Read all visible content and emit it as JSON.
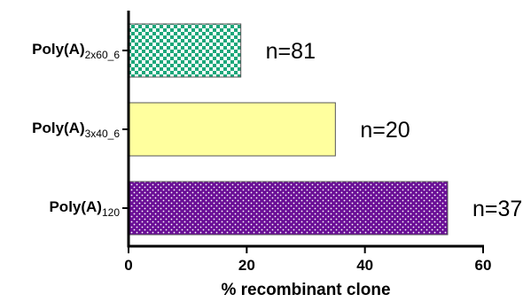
{
  "chart_data": {
    "type": "bar",
    "orientation": "horizontal",
    "categories": [
      {
        "main": "Poly(A)",
        "sub": "2x60_6"
      },
      {
        "main": "Poly(A)",
        "sub": "3x40_6"
      },
      {
        "main": "Poly(A)",
        "sub": "120"
      }
    ],
    "values": [
      19,
      35,
      54
    ],
    "data_labels": [
      "n=81",
      "n=20",
      "n=37"
    ],
    "fills": [
      {
        "pattern": "checker",
        "colors": [
          "#1aa77a",
          "#ffffff"
        ]
      },
      {
        "pattern": "solid",
        "colors": [
          "#ffff9e"
        ]
      },
      {
        "pattern": "dots",
        "colors": [
          "#6a0f96",
          "#ffffff"
        ]
      }
    ],
    "xlabel": "% recombinant clone",
    "ylabel": "",
    "title": "",
    "xlim": [
      0,
      60
    ],
    "xticks": [
      0,
      20,
      40,
      60
    ],
    "grid": false,
    "legend": "none"
  }
}
